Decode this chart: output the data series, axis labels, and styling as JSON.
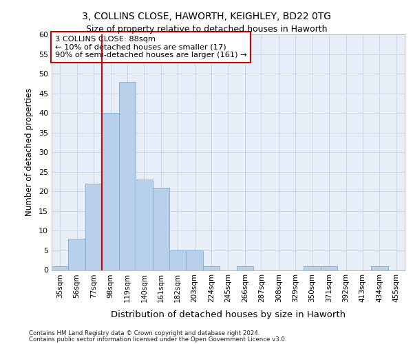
{
  "title1": "3, COLLINS CLOSE, HAWORTH, KEIGHLEY, BD22 0TG",
  "title2": "Size of property relative to detached houses in Haworth",
  "xlabel": "Distribution of detached houses by size in Haworth",
  "ylabel": "Number of detached properties",
  "bar_labels": [
    "35sqm",
    "56sqm",
    "77sqm",
    "98sqm",
    "119sqm",
    "140sqm",
    "161sqm",
    "182sqm",
    "203sqm",
    "224sqm",
    "245sqm",
    "266sqm",
    "287sqm",
    "308sqm",
    "329sqm",
    "350sqm",
    "371sqm",
    "392sqm",
    "413sqm",
    "434sqm",
    "455sqm"
  ],
  "bar_values": [
    1,
    8,
    22,
    40,
    48,
    23,
    21,
    5,
    5,
    1,
    0,
    1,
    0,
    0,
    0,
    1,
    1,
    0,
    0,
    1,
    0
  ],
  "bar_color": "#b8d0ea",
  "bar_edge_color": "#7bacd4",
  "vline_color": "#cc0000",
  "annotation_line1": "3 COLLINS CLOSE: 88sqm",
  "annotation_line2": "← 10% of detached houses are smaller (17)",
  "annotation_line3": "90% of semi-detached houses are larger (161) →",
  "annotation_box_color": "#cc0000",
  "ylim": [
    0,
    60
  ],
  "yticks": [
    0,
    5,
    10,
    15,
    20,
    25,
    30,
    35,
    40,
    45,
    50,
    55,
    60
  ],
  "grid_color": "#c8d4e8",
  "background_color": "#e8eef8",
  "footer1": "Contains HM Land Registry data © Crown copyright and database right 2024.",
  "footer2": "Contains public sector information licensed under the Open Government Licence v3.0."
}
